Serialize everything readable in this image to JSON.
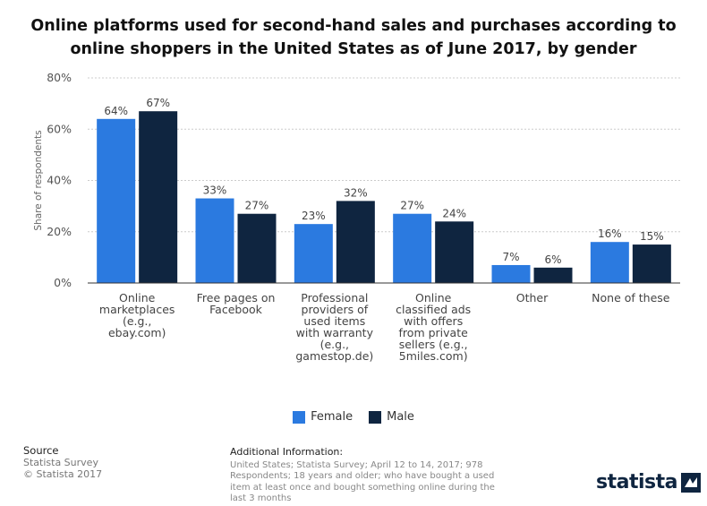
{
  "title": "Online platforms used for second-hand sales and purchases according to online shoppers in the United States as of June 2017, by gender",
  "colors": {
    "female": "#2b7ae0",
    "male": "#0f2540",
    "grid": "#cccccc"
  },
  "chart_data": {
    "type": "bar",
    "title": "Online platforms used for second-hand sales and purchases according to online shoppers in the United States as of June 2017, by gender",
    "xlabel": "",
    "ylabel": "Share of respondents",
    "ylim": [
      0,
      80
    ],
    "yticks": [
      "0%",
      "20%",
      "40%",
      "60%",
      "80%"
    ],
    "grid": true,
    "legend_position": "bottom",
    "categories": [
      "Online marketplaces (e.g., ebay.com)",
      "Free pages on Facebook",
      "Professional providers of used items with warranty (e.g., gamestop.de)",
      "Online classified ads with offers from private sellers (e.g., 5miles.com)",
      "Other",
      "None of these"
    ],
    "category_lines": [
      [
        "Online",
        "marketplaces",
        "(e.g.,",
        "ebay.com)"
      ],
      [
        "Free pages on",
        "Facebook"
      ],
      [
        "Professional",
        "providers of",
        "used items",
        "with warranty",
        "(e.g.,",
        "gamestop.de)"
      ],
      [
        "Online",
        "classified ads",
        "with offers",
        "from private",
        "sellers (e.g.,",
        "5miles.com)"
      ],
      [
        "Other"
      ],
      [
        "None of these"
      ]
    ],
    "series": [
      {
        "name": "Female",
        "values": [
          64,
          33,
          23,
          27,
          7,
          16
        ],
        "labels": [
          "64%",
          "33%",
          "23%",
          "27%",
          "7%",
          "16%"
        ]
      },
      {
        "name": "Male",
        "values": [
          67,
          27,
          32,
          24,
          6,
          15
        ],
        "labels": [
          "67%",
          "27%",
          "32%",
          "24%",
          "6%",
          "15%"
        ]
      }
    ]
  },
  "legend": {
    "female": "Female",
    "male": "Male"
  },
  "footer": {
    "source_heading": "Source",
    "source_line1": "Statista Survey",
    "source_line2": "© Statista 2017",
    "info_heading": "Additional Information:",
    "info_text": "United States; Statista Survey; April 12 to 14, 2017; 978 Respondents; 18 years and older; who have bought a used item at least once and bought something online during the last 3 months"
  },
  "logo": {
    "text": "statista",
    "icon": "statista-flag-icon"
  }
}
